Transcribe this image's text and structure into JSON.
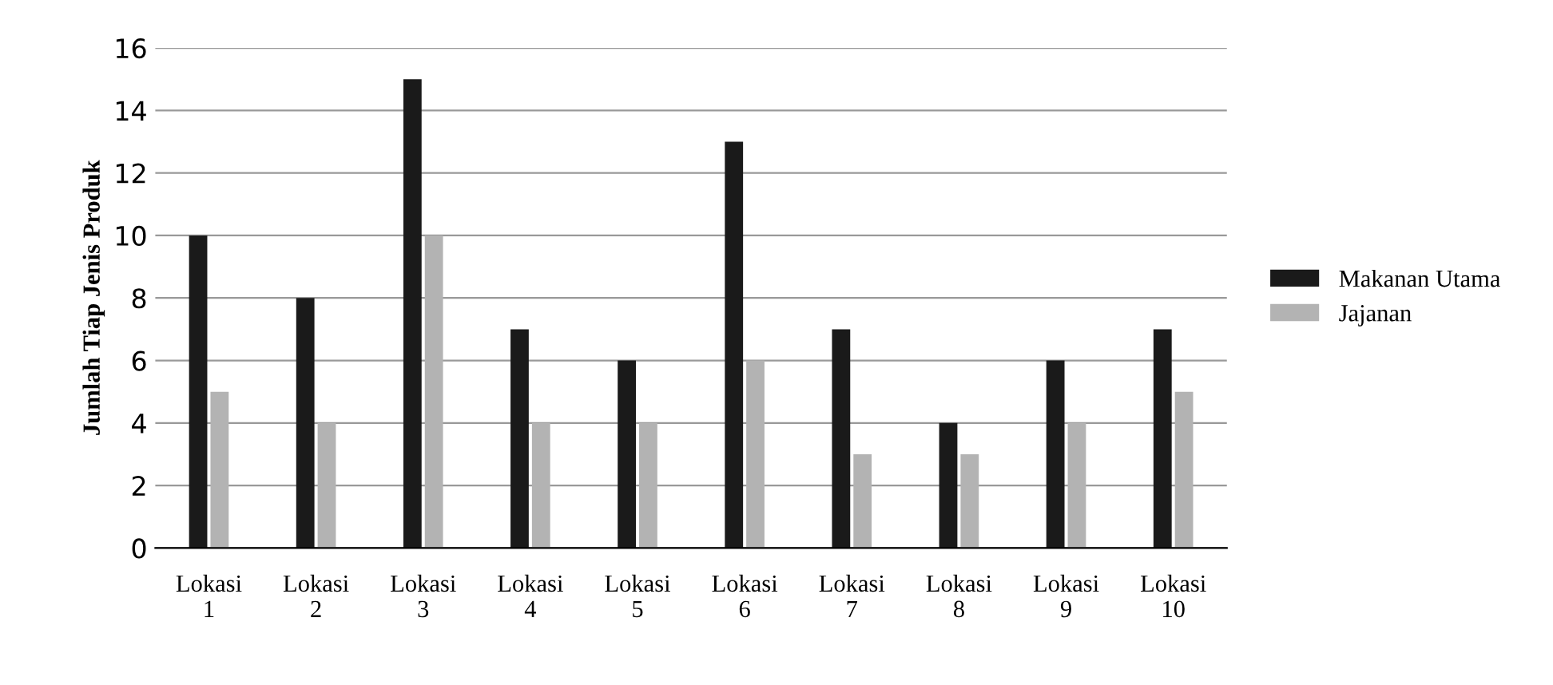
{
  "chart_data": {
    "type": "bar",
    "ylabel": "Jumlah Tiap Jenis Produk",
    "categories": [
      "Lokasi\n1",
      "Lokasi\n2",
      "Lokasi\n3",
      "Lokasi\n4",
      "Lokasi\n5",
      "Lokasi\n6",
      "Lokasi\n7",
      "Lokasi\n8",
      "Lokasi\n9",
      "Lokasi\n10"
    ],
    "series": [
      {
        "name": "Makanan Utama",
        "color": "#1a1a1a",
        "values": [
          10,
          8,
          15,
          7,
          6,
          13,
          7,
          4,
          6,
          7
        ]
      },
      {
        "name": "Jajanan",
        "color": "#b3b3b3",
        "values": [
          5,
          4,
          10,
          4,
          4,
          6,
          3,
          3,
          4,
          5
        ]
      }
    ],
    "ylim": [
      0,
      16
    ],
    "yticks": [
      0,
      2,
      4,
      6,
      8,
      10,
      12,
      14,
      16
    ],
    "grid": "y",
    "legend": "right"
  }
}
